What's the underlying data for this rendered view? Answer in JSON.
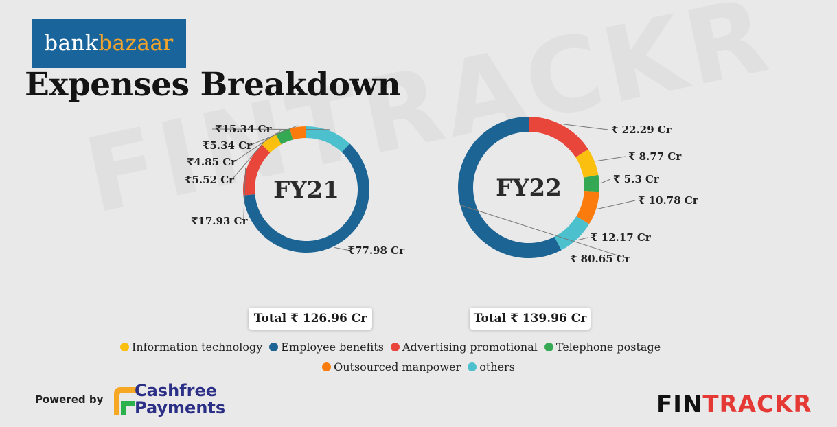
{
  "logo": {
    "part1": "bank",
    "part2": "bazaar"
  },
  "title": "Expenses Breakdown",
  "colors": {
    "information_technology": "#fbbf10",
    "employee_benefits": "#1c6494",
    "advertising_promotional": "#e8453b",
    "telephone_postage": "#35a853",
    "outsourced_manpower": "#fb7c0c",
    "others": "#4cc0cc"
  },
  "chart_data": [
    {
      "type": "pie",
      "center_label": "FY21",
      "total_label": "Total ₹ 126.96 Cr",
      "slices": [
        {
          "name": "others",
          "value": 15.34,
          "label": "₹15.34 Cr"
        },
        {
          "name": "Employee benefits",
          "value": 77.98,
          "label": "₹77.98 Cr"
        },
        {
          "name": "Advertising promotional",
          "value": 17.93,
          "label": "₹17.93 Cr"
        },
        {
          "name": "Information technology",
          "value": 5.52,
          "label": "₹5.52 Cr"
        },
        {
          "name": "Telephone postage",
          "value": 4.85,
          "label": "₹4.85 Cr"
        },
        {
          "name": "Outsourced manpower",
          "value": 5.34,
          "label": "₹5.34 Cr"
        }
      ]
    },
    {
      "type": "pie",
      "center_label": "FY22",
      "total_label": "Total ₹ 139.96 Cr",
      "slices": [
        {
          "name": "Advertising promotional",
          "value": 22.29,
          "label": "₹ 22.29 Cr"
        },
        {
          "name": "Information technology",
          "value": 8.77,
          "label": "₹ 8.77 Cr"
        },
        {
          "name": "Telephone postage",
          "value": 5.3,
          "label": "₹ 5.3 Cr"
        },
        {
          "name": "Outsourced manpower",
          "value": 10.78,
          "label": "₹ 10.78 Cr"
        },
        {
          "name": "others",
          "value": 12.17,
          "label": "₹ 12.17 Cr"
        },
        {
          "name": "Employee benefits",
          "value": 80.65,
          "label": "₹ 80.65 Cr"
        }
      ]
    }
  ],
  "legend": [
    {
      "label": "Information technology",
      "color": "#fbbf10"
    },
    {
      "label": "Employee benefits",
      "color": "#1c6494"
    },
    {
      "label": "Advertising promotional",
      "color": "#e8453b"
    },
    {
      "label": "Telephone postage",
      "color": "#35a853"
    },
    {
      "label": "Outsourced manpower",
      "color": "#fb7c0c"
    },
    {
      "label": "others",
      "color": "#4cc0cc"
    }
  ],
  "footer": {
    "powered_by": "Powered by",
    "cashfree_line1": "Cashfree",
    "cashfree_line2": "Payments",
    "brand_part1": "FIN",
    "brand_part2": "TRACKR"
  },
  "watermark": "FINTRACKR"
}
